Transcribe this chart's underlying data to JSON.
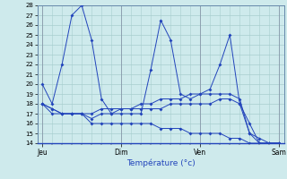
{
  "background_color": "#ceeaec",
  "grid_color": "#a8cece",
  "line_color": "#2244bb",
  "xlabel": "Température (°c)",
  "ylim": [
    14,
    28
  ],
  "ytick_min": 14,
  "ytick_max": 28,
  "day_labels": [
    "Jeu",
    "Dim",
    "Ven",
    "Sam"
  ],
  "day_positions": [
    0,
    8,
    16,
    24
  ],
  "n_points": 25,
  "series": [
    [
      20,
      18,
      22,
      27,
      28,
      24.5,
      18.5,
      17,
      17,
      17,
      17,
      21.5,
      26.5,
      24.5,
      19,
      18.5,
      19,
      19.5,
      22,
      25,
      18,
      16,
      14,
      14,
      14
    ],
    [
      18,
      17.5,
      17,
      17,
      17,
      16.5,
      17,
      17,
      17.5,
      17.5,
      18,
      18,
      18.5,
      18.5,
      18.5,
      19,
      19,
      19,
      19,
      19,
      18.5,
      15,
      14,
      14,
      14
    ],
    [
      18,
      17.5,
      17,
      17,
      17,
      17,
      17.5,
      17.5,
      17.5,
      17.5,
      17.5,
      17.5,
      17.5,
      18,
      18,
      18,
      18,
      18,
      18.5,
      18.5,
      18,
      15,
      14.5,
      14,
      14
    ],
    [
      18,
      17,
      17,
      17,
      17,
      16,
      16,
      16,
      16,
      16,
      16,
      16,
      15.5,
      15.5,
      15.5,
      15,
      15,
      15,
      15,
      14.5,
      14.5,
      14,
      14,
      14,
      14
    ]
  ]
}
